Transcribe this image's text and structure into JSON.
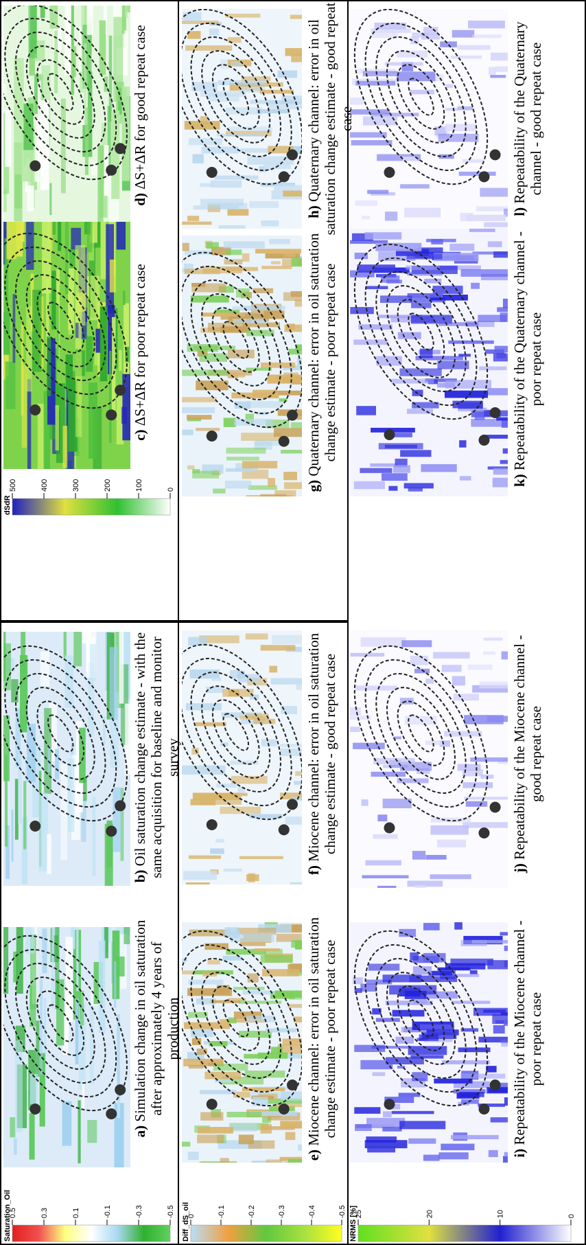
{
  "panels": [
    {
      "label": "a)",
      "caption": "Simulation change in oil saturation after approximately 4 years of production"
    },
    {
      "label": "b)",
      "caption": "Oil saturation change estimate - with the same acquisition for baseline and monitor survey"
    },
    {
      "label": "c)",
      "caption": "ΔS+ΔR for poor repeat case"
    },
    {
      "label": "d)",
      "caption": "ΔS+ΔR for good repeat case"
    },
    {
      "label": "e)",
      "caption": "Miocene channel: error in oil saturation change estimate - poor repeat case"
    },
    {
      "label": "f)",
      "caption": "Miocene channel: error in oil saturation change estimate - good repeat case"
    },
    {
      "label": "g)",
      "caption": "Quaternary channel: error in oil saturation change estimate - poor repeat case"
    },
    {
      "label": "h)",
      "caption": "Quaternary channel: error in oil saturation change estimate - good repeat case"
    },
    {
      "label": "i)",
      "caption": "Repeatability of the Miocene channel - poor repeat case"
    },
    {
      "label": "j)",
      "caption": "Repeatability of the Miocene channel - good repeat case"
    },
    {
      "label": "k)",
      "caption": "Repeatability of the Quaternary channel - poor repeat case"
    },
    {
      "label": "l)",
      "caption": "Repeatability of the Quaternary channel - good repeat case"
    }
  ],
  "colorbars": [
    {
      "title": "Saturation_Oil",
      "ticks": [
        "0.5",
        "0.3",
        "0.1",
        "-0.1",
        "-0.3",
        "-0.5"
      ]
    },
    {
      "title": "Diff_dS_oil",
      "ticks": [
        "0",
        "-0.1",
        "-0.2",
        "-0.3",
        "-0.4",
        "-0.5"
      ]
    },
    {
      "title": "NRMS [%]",
      "ticks": [
        "25",
        "20",
        "10",
        "0"
      ]
    },
    {
      "title": "dSdR",
      "ticks": [
        "500",
        "400",
        "300",
        "200",
        "100",
        "0"
      ]
    }
  ]
}
